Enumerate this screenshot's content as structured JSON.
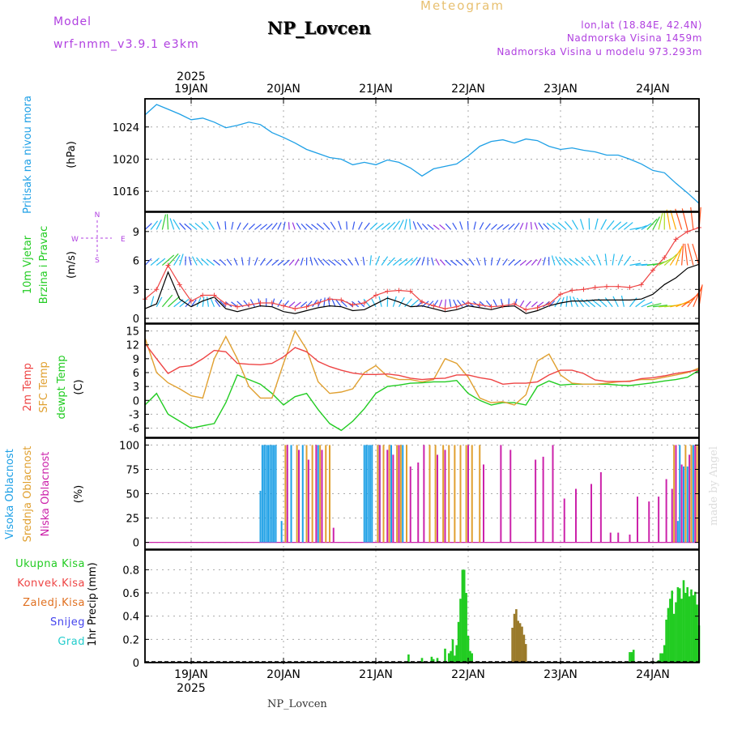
{
  "header": {
    "model_label": "Model",
    "model_name": "wrf-nmm_v3.9.1 e3km",
    "title": "NP_Lovcen",
    "meteogram_label": "Meteogram",
    "lonlat": "lon,lat (18.84E, 42.4N)",
    "elevation": "Nadmorska Visina 1459m",
    "model_elevation": "Nadmorska Visina u modelu 973.293m",
    "footer_name": "NP_Lovcen",
    "credit": "made by Angel"
  },
  "colors": {
    "pressure": "#1ea0e6",
    "wind_label": "#22cc22",
    "temp2m": "#ee4444",
    "sfc_temp": "#e0a030",
    "dewpt": "#22cc22",
    "high_cloud": "#1ea0e6",
    "mid_cloud": "#e0a030",
    "low_cloud": "#cc22aa",
    "total_precip": "#22cc22",
    "conv_precip": "#ee4444",
    "freezing": "#e07020",
    "snow": "#4444ee",
    "hail": "#22cccc",
    "purple_text": "#b040e0",
    "gold_text": "#e8c070"
  },
  "chart_data": [
    {
      "id": "pressure",
      "type": "line",
      "ylabel_title": "Pritisak na nivou mora",
      "ylabel_unit": "(hPa)",
      "ylim": [
        1013.5,
        1027.5
      ],
      "yticks": [
        1016,
        1020,
        1024
      ],
      "x": [
        0,
        3,
        6,
        9,
        12,
        15,
        18,
        21,
        24,
        27,
        30,
        33,
        36,
        39,
        42,
        45,
        48,
        51,
        54,
        57,
        60,
        63,
        66,
        69,
        72,
        75,
        78,
        81,
        84,
        87,
        90,
        93,
        96,
        99,
        102,
        105,
        108,
        111,
        114,
        117,
        120,
        123,
        126,
        129,
        132,
        135,
        138,
        141,
        144
      ],
      "series": [
        {
          "name": "Pritisak",
          "values": [
            1025.5,
            1026.8,
            1026.2,
            1025.6,
            1024.9,
            1025.1,
            1024.6,
            1023.9,
            1024.2,
            1024.6,
            1024.3,
            1023.3,
            1022.7,
            1022.0,
            1021.2,
            1020.7,
            1020.2,
            1020.0,
            1019.3,
            1019.6,
            1019.3,
            1019.9,
            1019.6,
            1018.9,
            1017.9,
            1018.8,
            1019.1,
            1019.4,
            1020.4,
            1021.6,
            1022.2,
            1022.4,
            1022.0,
            1022.5,
            1022.3,
            1021.6,
            1021.2,
            1021.4,
            1021.1,
            1020.9,
            1020.5,
            1020.5,
            1020.0,
            1019.4,
            1018.6,
            1018.3,
            1017.0,
            1015.8,
            1014.5
          ]
        }
      ]
    },
    {
      "id": "wind",
      "type": "line",
      "ylabel_title1": "10m Vjetar",
      "ylabel_title2": "Brzina i Pravac",
      "ylabel_unit": "(m/s)",
      "compass": {
        "n": "N",
        "s": "S",
        "w": "W",
        "e": "E"
      },
      "ylim": [
        -0.5,
        11
      ],
      "yticks": [
        0,
        3,
        6,
        9
      ],
      "x": [
        0,
        3,
        6,
        9,
        12,
        15,
        18,
        21,
        24,
        27,
        30,
        33,
        36,
        39,
        42,
        45,
        48,
        51,
        54,
        57,
        60,
        63,
        66,
        69,
        72,
        75,
        78,
        81,
        84,
        87,
        90,
        93,
        96,
        99,
        102,
        105,
        108,
        111,
        114,
        117,
        120,
        123,
        126,
        129,
        132,
        135,
        138,
        141,
        144
      ],
      "series": [
        {
          "name": "Brzina",
          "values": [
            1.0,
            1.5,
            4.8,
            2.0,
            1.2,
            1.8,
            2.2,
            1.0,
            0.7,
            1.0,
            1.3,
            1.2,
            0.7,
            0.5,
            0.8,
            1.1,
            1.3,
            1.2,
            0.8,
            0.9,
            1.5,
            2.1,
            1.7,
            1.2,
            1.3,
            1.0,
            0.7,
            0.9,
            1.3,
            1.1,
            0.9,
            1.2,
            1.3,
            0.5,
            0.8,
            1.3,
            1.6,
            1.8,
            1.8,
            1.9,
            1.9,
            1.9,
            1.9,
            2.0,
            2.5,
            3.5,
            4.2,
            5.2,
            5.6
          ]
        },
        {
          "name": "Udari",
          "values": [
            2.0,
            3.0,
            5.5,
            3.5,
            1.8,
            2.4,
            2.4,
            1.5,
            1.2,
            1.4,
            1.6,
            1.6,
            1.3,
            1.0,
            1.2,
            1.6,
            2.0,
            1.9,
            1.4,
            1.6,
            2.4,
            2.8,
            2.9,
            2.8,
            1.7,
            1.3,
            1.0,
            1.2,
            1.6,
            1.4,
            1.2,
            1.3,
            1.5,
            0.9,
            1.1,
            1.5,
            2.5,
            2.9,
            3.0,
            3.2,
            3.3,
            3.3,
            3.2,
            3.5,
            5.0,
            6.3,
            8.2,
            9.0,
            9.4
          ]
        }
      ]
    },
    {
      "id": "temperature",
      "type": "line",
      "ylabel_title1": "2m Temp",
      "ylabel_title2": "SFC Temp",
      "ylabel_title3": "dewpt Temp",
      "ylabel_unit": "(C)",
      "ylim": [
        -8,
        16.5
      ],
      "yticks": [
        -6,
        -3,
        0,
        3,
        6,
        9,
        12,
        15
      ],
      "x": [
        0,
        3,
        6,
        9,
        12,
        15,
        18,
        21,
        24,
        27,
        30,
        33,
        36,
        39,
        42,
        45,
        48,
        51,
        54,
        57,
        60,
        63,
        66,
        69,
        72,
        75,
        78,
        81,
        84,
        87,
        90,
        93,
        96,
        99,
        102,
        105,
        108,
        111,
        114,
        117,
        120,
        123,
        126,
        129,
        132,
        135,
        138,
        141,
        144
      ],
      "series": [
        {
          "name": "2m Temp",
          "values": [
            12.3,
            9.0,
            5.8,
            7.2,
            7.5,
            9.0,
            10.8,
            10.5,
            8.0,
            7.8,
            7.7,
            8.0,
            9.4,
            11.4,
            10.5,
            8.4,
            7.3,
            6.5,
            5.9,
            5.6,
            5.6,
            5.7,
            5.4,
            4.8,
            4.5,
            4.7,
            4.8,
            5.5,
            5.5,
            4.9,
            4.5,
            3.5,
            3.7,
            3.7,
            4.0,
            5.5,
            6.5,
            6.5,
            5.8,
            4.4,
            4.1,
            4.1,
            4.1,
            4.7,
            4.9,
            5.3,
            5.8,
            6.2,
            6.6
          ]
        },
        {
          "name": "SFC Temp",
          "values": [
            13.5,
            6.0,
            3.8,
            2.5,
            1.0,
            0.5,
            9.0,
            13.8,
            9.0,
            3.0,
            0.5,
            0.5,
            8.0,
            15.0,
            11.0,
            4.0,
            1.5,
            1.8,
            2.5,
            6.0,
            7.5,
            5.2,
            4.5,
            4.5,
            4.0,
            4.5,
            9.0,
            8.0,
            5.0,
            0.5,
            -0.5,
            -0.3,
            -1.0,
            1.2,
            8.5,
            10.0,
            5.5,
            3.7,
            3.5,
            3.5,
            3.7,
            4.0,
            4.2,
            4.5,
            4.5,
            5.0,
            5.5,
            6.0,
            7.0
          ]
        },
        {
          "name": "dewpt Temp",
          "values": [
            -1.0,
            1.5,
            -3.0,
            -4.5,
            -6.0,
            -5.5,
            -5.0,
            -0.5,
            5.5,
            4.5,
            3.5,
            1.5,
            -1.0,
            0.8,
            1.5,
            -2.0,
            -5.0,
            -6.5,
            -4.5,
            -1.8,
            1.5,
            3.0,
            3.3,
            3.7,
            3.8,
            4.0,
            4.0,
            4.3,
            1.5,
            0.0,
            -1.0,
            -0.5,
            -0.5,
            -1.0,
            3.0,
            4.2,
            3.3,
            3.5,
            3.5,
            3.5,
            3.5,
            3.3,
            3.2,
            3.5,
            3.8,
            4.2,
            4.5,
            5.0,
            6.5
          ]
        }
      ]
    },
    {
      "id": "clouds",
      "type": "bar",
      "ylabel_title1": "Visoka Oblacnost",
      "ylabel_title2": "Srednja Oblacnost",
      "ylabel_title3": "Niska Oblacnost",
      "ylabel_unit": "(%)",
      "ylim": [
        -7,
        107
      ],
      "yticks": [
        0,
        25,
        50,
        75,
        100
      ],
      "series": [
        {
          "name": "Visoka Oblacnost",
          "x": [
            30.0,
            30.5,
            31.0,
            31.5,
            32.0,
            32.5,
            33.0,
            33.5,
            34.0,
            35.5,
            38.0,
            41.0,
            45.0,
            57.0,
            57.5,
            58.0,
            58.5,
            59.0,
            61.0,
            64.0,
            67.0,
            138.5,
            139.0,
            140.0,
            141.0,
            142.5
          ],
          "values": [
            53,
            100,
            100,
            100,
            100,
            100,
            100,
            100,
            100,
            22,
            100,
            100,
            100,
            100,
            100,
            100,
            100,
            100,
            100,
            100,
            100,
            22,
            100,
            78,
            78,
            100
          ]
        },
        {
          "name": "Srednja Oblacnost",
          "x": [
            36.5,
            39.5,
            42.0,
            43.5,
            45.5,
            47.0,
            48.0,
            60.5,
            62.0,
            63.5,
            65.5,
            66.5,
            68.0,
            74.0,
            75.5,
            77.5,
            79.0,
            80.5,
            82.0,
            83.5,
            85.0,
            87.0,
            137.5,
            140.5,
            142.0,
            143.5
          ],
          "values": [
            100,
            100,
            100,
            100,
            100,
            100,
            100,
            100,
            100,
            100,
            100,
            100,
            100,
            100,
            100,
            100,
            100,
            100,
            100,
            100,
            100,
            100,
            100,
            100,
            100,
            100
          ]
        },
        {
          "name": "Niska Oblacnost",
          "x": [
            37.0,
            40.0,
            42.5,
            44.5,
            46.0,
            49.0,
            61.0,
            63.0,
            64.5,
            66.0,
            69.0,
            71.0,
            72.5,
            76.0,
            78.0,
            84.0,
            88.0,
            92.5,
            95.0,
            101.5,
            103.5,
            106.0,
            109.0,
            112.0,
            116.0,
            118.5,
            121.0,
            123.0,
            126.0,
            128.0,
            131.0,
            133.5,
            135.5,
            137.0,
            138.0,
            139.5,
            141.5,
            143.0,
            144.0
          ],
          "values": [
            100,
            95,
            85,
            100,
            95,
            15,
            100,
            95,
            90,
            100,
            78,
            82,
            100,
            90,
            95,
            100,
            80,
            100,
            95,
            85,
            88,
            100,
            45,
            55,
            60,
            72,
            10,
            10,
            8,
            47,
            42,
            47,
            65,
            55,
            100,
            80,
            90,
            100,
            100
          ]
        }
      ]
    },
    {
      "id": "precip",
      "type": "bar",
      "ylabel_title": "1hr Precip",
      "ylabel_unit": "(mm)",
      "legend": [
        "Ukupna Kisa",
        "Konvek.Kisa",
        "Zaledj.Kisa",
        "Snijeg",
        "Grad"
      ],
      "ylim": [
        0,
        0.97
      ],
      "yticks": [
        0,
        0.2,
        0.4,
        0.6,
        0.8
      ],
      "series": [
        {
          "name": "Ukupna Kisa",
          "x": [
            68.5,
            72.0,
            74.5,
            75.0,
            76.0,
            78.0,
            79.0,
            79.5,
            80.0,
            80.5,
            81.0,
            81.5,
            82.0,
            82.5,
            83.0,
            83.5,
            84.0,
            84.5,
            85.0,
            126.0,
            126.5,
            127.0,
            133.0,
            133.5,
            134.0,
            134.5,
            135.0,
            135.5,
            136.0,
            136.5,
            137.0,
            137.5,
            138.0,
            138.5,
            139.0,
            139.5,
            140.0,
            140.5,
            141.0,
            141.5,
            142.0,
            142.5,
            143.0,
            143.5,
            144.0
          ],
          "values": [
            0.07,
            0.04,
            0.05,
            0.03,
            0.04,
            0.12,
            0.08,
            0.1,
            0.2,
            0.06,
            0.15,
            0.35,
            0.55,
            0.8,
            0.8,
            0.6,
            0.23,
            0.1,
            0.08,
            0.09,
            0.09,
            0.11,
            0.01,
            0.02,
            0.08,
            0.08,
            0.15,
            0.37,
            0.47,
            0.55,
            0.62,
            0.42,
            0.52,
            0.65,
            0.64,
            0.55,
            0.71,
            0.6,
            0.65,
            0.57,
            0.63,
            0.58,
            0.61,
            0.5,
            0.32
          ]
        },
        {
          "name": "Zaledj.Kisa",
          "x": [
            95.5,
            96.0,
            96.5,
            97.0,
            97.5,
            98.0,
            98.5,
            99.0
          ],
          "values": [
            0.3,
            0.42,
            0.46,
            0.36,
            0.34,
            0.31,
            0.24,
            0.16
          ]
        },
        {
          "name": "Konvek.Kisa",
          "x": [],
          "values": []
        },
        {
          "name": "Snijeg",
          "x": [],
          "values": []
        },
        {
          "name": "Grad",
          "x": [],
          "values": []
        }
      ]
    }
  ],
  "time_axis": {
    "year": "2025",
    "days": [
      "19JAN",
      "20JAN",
      "21JAN",
      "22JAN",
      "23JAN",
      "24JAN"
    ],
    "day_hours": [
      12,
      36,
      60,
      84,
      108,
      132
    ]
  }
}
